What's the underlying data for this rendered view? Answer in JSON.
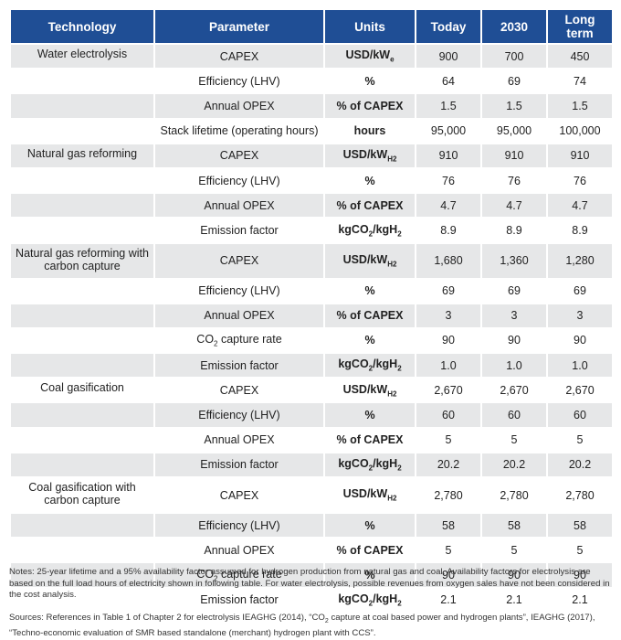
{
  "headers": [
    "Technology",
    "Parameter",
    "Units",
    "Today",
    "2030",
    "Long term"
  ],
  "rows": [
    {
      "tech": "Water electrolysis",
      "param": "CAPEX",
      "units": "USD/kWe",
      "today": "900",
      "y2030": "700",
      "long": "450"
    },
    {
      "tech": "",
      "param": "Efficiency (LHV)",
      "units": "%",
      "today": "64",
      "y2030": "69",
      "long": "74"
    },
    {
      "tech": "",
      "param": "Annual OPEX",
      "units": "% of CAPEX",
      "today": "1.5",
      "y2030": "1.5",
      "long": "1.5"
    },
    {
      "tech": "",
      "param": "Stack lifetime (operating hours)",
      "units": "hours",
      "today": "95,000",
      "y2030": "95,000",
      "long": "100,000"
    },
    {
      "tech": "Natural gas reforming",
      "param": "CAPEX",
      "units": "USD/kWH2",
      "today": "910",
      "y2030": "910",
      "long": "910"
    },
    {
      "tech": "",
      "param": "Efficiency (LHV)",
      "units": "%",
      "today": "76",
      "y2030": "76",
      "long": "76"
    },
    {
      "tech": "",
      "param": "Annual OPEX",
      "units": "% of CAPEX",
      "today": "4.7",
      "y2030": "4.7",
      "long": "4.7"
    },
    {
      "tech": "",
      "param": "Emission factor",
      "units": "kgCO2/kgH2",
      "today": "8.9",
      "y2030": "8.9",
      "long": "8.9"
    },
    {
      "tech": "Natural gas reforming with carbon capture",
      "param": "CAPEX",
      "units": "USD/kWH2",
      "today": "1,680",
      "y2030": "1,360",
      "long": "1,280"
    },
    {
      "tech": "",
      "param": "Efficiency (LHV)",
      "units": "%",
      "today": "69",
      "y2030": "69",
      "long": "69"
    },
    {
      "tech": "",
      "param": "Annual OPEX",
      "units": "% of CAPEX",
      "today": "3",
      "y2030": "3",
      "long": "3"
    },
    {
      "tech": "",
      "param": "CO2 capture rate",
      "units": "%",
      "today": "90",
      "y2030": "90",
      "long": "90"
    },
    {
      "tech": "",
      "param": "Emission factor",
      "units": "kgCO2/kgH2",
      "today": "1.0",
      "y2030": "1.0",
      "long": "1.0"
    },
    {
      "tech": "Coal gasification",
      "param": "CAPEX",
      "units": "USD/kWH2",
      "today": "2,670",
      "y2030": "2,670",
      "long": "2,670"
    },
    {
      "tech": "",
      "param": "Efficiency (LHV)",
      "units": "%",
      "today": "60",
      "y2030": "60",
      "long": "60"
    },
    {
      "tech": "",
      "param": "Annual OPEX",
      "units": "% of CAPEX",
      "today": "5",
      "y2030": "5",
      "long": "5"
    },
    {
      "tech": "",
      "param": "Emission factor",
      "units": "kgCO2/kgH2",
      "today": "20.2",
      "y2030": "20.2",
      "long": "20.2"
    },
    {
      "tech": "Coal gasification with carbon capture",
      "param": "CAPEX",
      "units": "USD/kWH2",
      "today": "2,780",
      "y2030": "2,780",
      "long": "2,780"
    },
    {
      "tech": "",
      "param": "Efficiency (LHV)",
      "units": "%",
      "today": "58",
      "y2030": "58",
      "long": "58"
    },
    {
      "tech": "",
      "param": "Annual OPEX",
      "units": "% of CAPEX",
      "today": "5",
      "y2030": "5",
      "long": "5"
    },
    {
      "tech": "",
      "param": "CO2 capture rate",
      "units": "%",
      "today": "90",
      "y2030": "90",
      "long": "90"
    },
    {
      "tech": "",
      "param": "Emission factor",
      "units": "kgCO2/kgH2",
      "today": "2.1",
      "y2030": "2.1",
      "long": "2.1"
    }
  ],
  "notes": "Notes: 25-year lifetime and a 95% availability factor assumed for hydrogen production from natural gas and coal. Availability factors for electrolysis are based on the full load hours of electricity shown in following table. For water electrolysis, possible revenues from oxygen sales have not been considered in the cost analysis.",
  "sources": "Sources: References in Table 1 of Chapter 2 for electrolysis IEAGHG (2014), “CO2 capture at coal based power and hydrogen plants”, IEAGHG (2017), “Techno-economic evaluation of SMR based standalone (merchant) hydrogen plant with CCS”.",
  "colors": {
    "header": "#1f4e95",
    "band": "#e6e7e8"
  }
}
